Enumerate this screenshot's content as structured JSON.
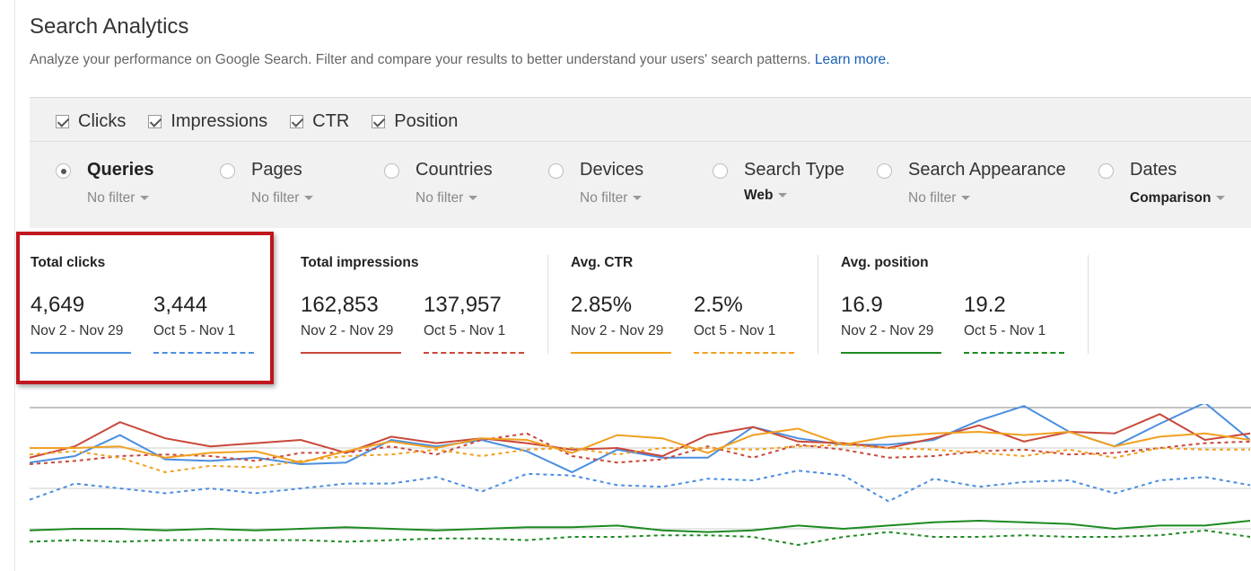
{
  "header": {
    "title": "Search Analytics",
    "subtitle": "Analyze your performance on Google Search. Filter and compare your results to better understand your users' search patterns.",
    "learn_more": "Learn more."
  },
  "metric_toggles": [
    {
      "label": "Clicks",
      "checked": true
    },
    {
      "label": "Impressions",
      "checked": true
    },
    {
      "label": "CTR",
      "checked": true
    },
    {
      "label": "Position",
      "checked": true
    }
  ],
  "dimensions": [
    {
      "name": "Queries",
      "filter": "No filter",
      "selected": true
    },
    {
      "name": "Pages",
      "filter": "No filter",
      "selected": false
    },
    {
      "name": "Countries",
      "filter": "No filter",
      "selected": false
    },
    {
      "name": "Devices",
      "filter": "No filter",
      "selected": false
    },
    {
      "name": "Search Type",
      "filter": "Web",
      "selected": false
    },
    {
      "name": "Search Appearance",
      "filter": "No filter",
      "selected": false
    },
    {
      "name": "Dates",
      "filter": "Comparison",
      "selected": false
    }
  ],
  "stats": [
    {
      "title": "Total clicks",
      "current": "4,649",
      "current_range": "Nov 2 - Nov 29",
      "previous": "3,444",
      "previous_range": "Oct 5 - Nov 1",
      "color": "#4a8ee0"
    },
    {
      "title": "Total impressions",
      "current": "162,853",
      "current_range": "Nov 2 - Nov 29",
      "previous": "137,957",
      "previous_range": "Oct 5 - Nov 1",
      "color": "#c9473a"
    },
    {
      "title": "Avg. CTR",
      "current": "2.85%",
      "current_range": "Nov 2 - Nov 29",
      "previous": "2.5%",
      "previous_range": "Oct 5 - Nov 1",
      "color": "#f0a020"
    },
    {
      "title": "Avg. position",
      "current": "16.9",
      "current_range": "Nov 2 - Nov 29",
      "previous": "19.2",
      "previous_range": "Oct 5 - Nov 1",
      "color": "#1d8a22"
    }
  ],
  "chart_data": {
    "type": "line",
    "x": [
      1,
      2,
      3,
      4,
      5,
      6,
      7,
      8,
      9,
      10,
      11,
      12,
      13,
      14,
      15,
      16,
      17,
      18,
      19,
      20,
      21,
      22,
      23,
      24,
      25,
      26,
      27,
      28
    ],
    "grid": true,
    "ylim": [
      0,
      100
    ],
    "series": [
      {
        "metric": "clicks-current",
        "color": "#4a8ee0",
        "dashed": false,
        "values": [
          66,
          70,
          83,
          68,
          67,
          69,
          65,
          66,
          80,
          76,
          80,
          73,
          60,
          74,
          69,
          69,
          88,
          81,
          77,
          77,
          80,
          92,
          101,
          85,
          76,
          90,
          103,
          80
        ]
      },
      {
        "metric": "clicks-previous",
        "color": "#4a8ee0",
        "dashed": true,
        "values": [
          43,
          53,
          50,
          47,
          50,
          47,
          50,
          53,
          53,
          57,
          48,
          59,
          58,
          52,
          51,
          56,
          55,
          61,
          58,
          42,
          56,
          51,
          54,
          55,
          47,
          55,
          57,
          52
        ]
      },
      {
        "metric": "impressions-current",
        "color": "#c9473a",
        "dashed": false,
        "values": [
          69,
          76,
          91,
          81,
          76,
          78,
          80,
          72,
          82,
          78,
          81,
          78,
          74,
          75,
          70,
          83,
          88,
          79,
          78,
          75,
          81,
          89,
          79,
          85,
          84,
          96,
          80,
          84
        ]
      },
      {
        "metric": "impressions-previous",
        "color": "#c9473a",
        "dashed": true,
        "values": [
          65,
          67,
          70,
          71,
          70,
          67,
          72,
          72,
          76,
          71,
          80,
          84,
          70,
          66,
          68,
          76,
          69,
          77,
          74,
          69,
          70,
          73,
          74,
          71,
          72,
          75,
          78,
          79
        ]
      },
      {
        "metric": "ctr-current",
        "color": "#f0a020",
        "dashed": false,
        "values": [
          75,
          75,
          76,
          69,
          72,
          73,
          66,
          73,
          79,
          75,
          81,
          80,
          72,
          83,
          81,
          72,
          83,
          87,
          77,
          82,
          84,
          85,
          83,
          85,
          76,
          82,
          84,
          80
        ]
      },
      {
        "metric": "ctr-previous",
        "color": "#f0a020",
        "dashed": true,
        "values": [
          71,
          73,
          69,
          60,
          64,
          63,
          67,
          70,
          71,
          74,
          70,
          74,
          75,
          71,
          75,
          75,
          74,
          76,
          77,
          75,
          74,
          72,
          70,
          74,
          69,
          75,
          74,
          74
        ]
      },
      {
        "metric": "position-current",
        "color": "#1d8a22",
        "dashed": false,
        "values": [
          24,
          25,
          25,
          24,
          25,
          24,
          25,
          26,
          25,
          24,
          25,
          26,
          26,
          27,
          24,
          23,
          24,
          27,
          25,
          27,
          29,
          30,
          29,
          28,
          25,
          27,
          27,
          30
        ]
      },
      {
        "metric": "position-previous",
        "color": "#1d8a22",
        "dashed": true,
        "values": [
          17,
          18,
          17,
          18,
          18,
          18,
          18,
          17,
          18,
          19,
          19,
          18,
          20,
          20,
          21,
          21,
          20,
          15,
          20,
          23,
          20,
          20,
          21,
          20,
          20,
          21,
          24,
          20
        ]
      }
    ]
  }
}
